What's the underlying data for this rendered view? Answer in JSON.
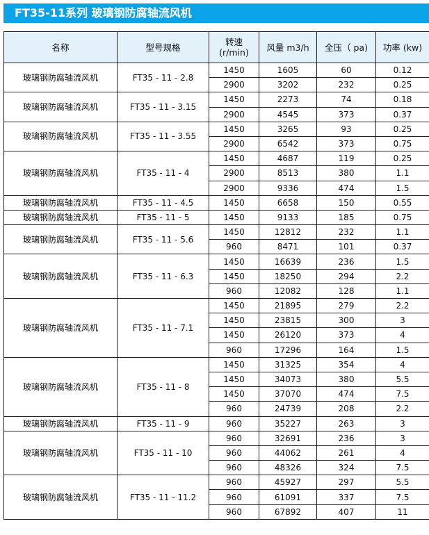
{
  "title": "FT35-11系列 玻璃钢防腐轴流风机",
  "colors": {
    "title_bar": "#0ba3e8",
    "header_bg": "#e3f1fb"
  },
  "table": {
    "headers": [
      "名称",
      "型号规格",
      "转速\n(r/min)",
      "风量 m3/h",
      "全压（ pa)",
      "功率 (kw)"
    ],
    "groups": [
      {
        "name": "玻璃钢防腐轴流风机",
        "model": "FT35 - 11 - 2.8",
        "rows": [
          [
            "1450",
            "1605",
            "60",
            "0.12"
          ],
          [
            "2900",
            "3202",
            "232",
            "0.25"
          ]
        ]
      },
      {
        "name": "玻璃钢防腐轴流风机",
        "model": "FT35 - 11 - 3.15",
        "rows": [
          [
            "1450",
            "2273",
            "74",
            "0.18"
          ],
          [
            "2900",
            "4545",
            "373",
            "0.37"
          ]
        ]
      },
      {
        "name": "玻璃钢防腐轴流风机",
        "model": "FT35 - 11 - 3.55",
        "rows": [
          [
            "1450",
            "3265",
            "93",
            "0.25"
          ],
          [
            "2900",
            "6542",
            "373",
            "0.75"
          ]
        ]
      },
      {
        "name": "玻璃钢防腐轴流风机",
        "model": "FT35 - 11 - 4",
        "rows": [
          [
            "1450",
            "4687",
            "119",
            "0.25"
          ],
          [
            "2900",
            "8513",
            "380",
            "1.1"
          ],
          [
            "2900",
            "9336",
            "474",
            "1.5"
          ]
        ]
      },
      {
        "name": "玻璃钢防腐轴流风机",
        "model": "FT35 - 11 - 4.5",
        "rows": [
          [
            "1450",
            "6658",
            "150",
            "0.55"
          ]
        ]
      },
      {
        "name": "玻璃钢防腐轴流风机",
        "model": "FT35 - 11 - 5",
        "rows": [
          [
            "1450",
            "9133",
            "185",
            "0.75"
          ]
        ]
      },
      {
        "name": "玻璃钢防腐轴流风机",
        "model": "FT35 - 11 - 5.6",
        "rows": [
          [
            "1450",
            "12812",
            "232",
            "1.1"
          ],
          [
            "960",
            "8471",
            "101",
            "0.37"
          ]
        ]
      },
      {
        "name": "玻璃钢防腐轴流风机",
        "model": "FT35 - 11 - 6.3",
        "rows": [
          [
            "1450",
            "16639",
            "236",
            "1.5"
          ],
          [
            "1450",
            "18250",
            "294",
            "2.2"
          ],
          [
            "960",
            "12082",
            "128",
            "1.1"
          ]
        ]
      },
      {
        "name": "玻璃钢防腐轴流风机",
        "model": "FT35 - 11 - 7.1",
        "rows": [
          [
            "1450",
            "21895",
            "279",
            "2.2"
          ],
          [
            "1450",
            "23815",
            "300",
            "3"
          ],
          [
            "1450",
            "26120",
            "373",
            "4"
          ],
          [
            "960",
            "17296",
            "164",
            "1.5"
          ]
        ]
      },
      {
        "name": "玻璃钢防腐轴流风机",
        "model": "FT35 - 11 - 8",
        "rows": [
          [
            "1450",
            "31325",
            "354",
            "4"
          ],
          [
            "1450",
            "34073",
            "380",
            "5.5"
          ],
          [
            "1450",
            "37070",
            "474",
            "7.5"
          ],
          [
            "960",
            "24739",
            "208",
            "2.2"
          ]
        ]
      },
      {
        "name": "玻璃钢防腐轴流风机",
        "model": "FT35 - 11 - 9",
        "rows": [
          [
            "960",
            "35227",
            "263",
            "3"
          ]
        ]
      },
      {
        "name": "玻璃钢防腐轴流风机",
        "model": "FT35 - 11 - 10",
        "rows": [
          [
            "960",
            "32691",
            "236",
            "3"
          ],
          [
            "960",
            "44062",
            "261",
            "4"
          ],
          [
            "960",
            "48326",
            "324",
            "7.5"
          ]
        ]
      },
      {
        "name": "玻璃钢防腐轴流风机",
        "model": "FT35 - 11 - 11.2",
        "rows": [
          [
            "960",
            "45927",
            "297",
            "5.5"
          ],
          [
            "960",
            "61091",
            "337",
            "7.5"
          ],
          [
            "960",
            "67892",
            "407",
            "11"
          ]
        ]
      }
    ]
  }
}
